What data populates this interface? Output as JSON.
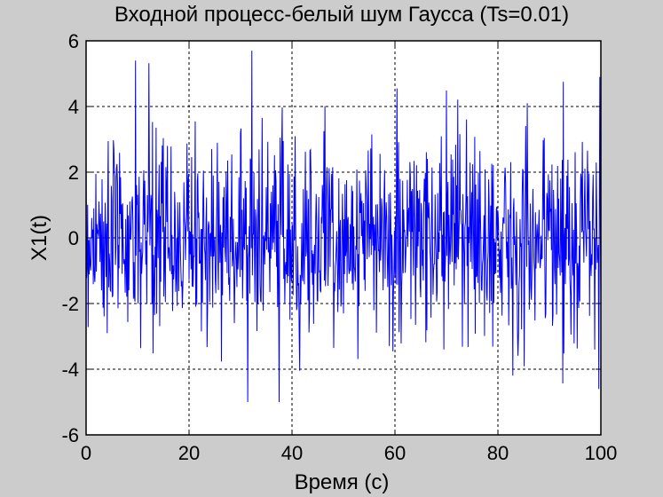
{
  "chart_data": {
    "type": "line",
    "title": "Входной процесс-белый шум Гаусса (Ts=0.01)",
    "xlabel": "Время (с)",
    "ylabel": "X1(t)",
    "xlim": [
      0,
      100
    ],
    "ylim": [
      -6,
      6
    ],
    "x_ticks": [
      "0",
      "20",
      "40",
      "60",
      "80",
      "100"
    ],
    "y_ticks": [
      "6",
      "4",
      "2",
      "0",
      "-2",
      "-4",
      "-6"
    ],
    "grid": true,
    "series_color": "#0000ff",
    "sampling_period": 0.01,
    "signal": {
      "mean": 0,
      "std": 1.5,
      "min": -5.0,
      "max": 5.7
    },
    "extremes": [
      {
        "x": 32.2,
        "y": 5.7
      },
      {
        "x": 9.6,
        "y": 5.4
      },
      {
        "x": 37.5,
        "y": -5.0
      },
      {
        "x": 99.6,
        "y": -4.6
      },
      {
        "x": 99.8,
        "y": 4.9
      }
    ]
  }
}
